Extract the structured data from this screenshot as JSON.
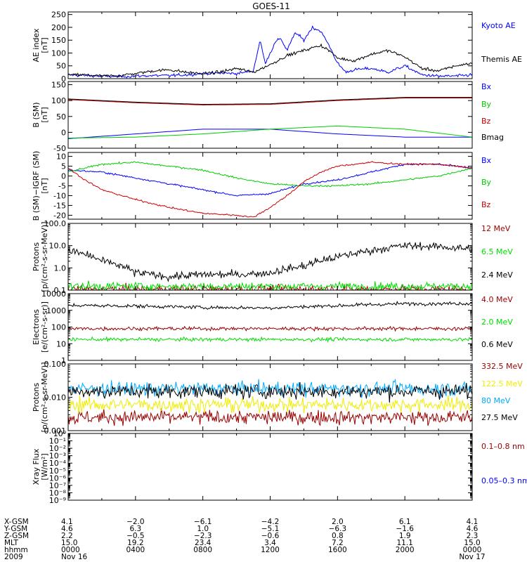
{
  "figure": {
    "title": "GOES-11"
  },
  "chart_data": [
    {
      "id": "ae",
      "type": "line",
      "ylabel": [
        "AE index",
        "[nT]"
      ],
      "yscale": "linear",
      "ylim": [
        0,
        260
      ],
      "yticks": [
        0,
        50,
        100,
        150,
        200,
        250
      ],
      "ytick_labels": [
        "0",
        "50",
        "100",
        "150",
        "200",
        "250"
      ],
      "noise": 4,
      "series": [
        {
          "name": "Kyoto AE",
          "color": "#0000ff",
          "x": [
            0,
            1,
            2,
            3,
            4,
            5,
            6,
            7,
            8,
            9,
            10,
            11,
            11.4,
            11.7,
            12,
            12.3,
            12.6,
            13,
            13.5,
            14,
            14.5,
            15,
            15.5,
            16,
            16.5,
            17,
            18,
            19,
            20,
            21,
            22,
            23,
            24
          ],
          "y": [
            15,
            12,
            10,
            8,
            10,
            12,
            12,
            15,
            20,
            22,
            20,
            30,
            150,
            60,
            100,
            140,
            160,
            110,
            180,
            150,
            200,
            185,
            130,
            60,
            25,
            35,
            40,
            25,
            50,
            15,
            10,
            10,
            15
          ]
        },
        {
          "name": "Themis AE",
          "color": "#000000",
          "x": [
            0,
            1,
            2,
            3,
            4,
            5,
            6,
            7,
            8,
            9,
            10,
            11,
            12,
            13,
            14,
            15,
            15.5,
            16,
            17,
            18,
            19,
            20,
            21,
            22,
            23,
            24
          ],
          "y": [
            15,
            15,
            10,
            12,
            20,
            30,
            35,
            25,
            20,
            25,
            40,
            25,
            55,
            90,
            110,
            130,
            110,
            80,
            70,
            95,
            110,
            85,
            40,
            30,
            50,
            60
          ]
        }
      ]
    },
    {
      "id": "bgsm",
      "type": "line",
      "ylabel": [
        "B (SM)",
        "[nT]"
      ],
      "yscale": "linear",
      "ylim": [
        -50,
        160
      ],
      "yticks": [
        -50,
        0,
        50,
        100,
        150
      ],
      "ytick_labels": [
        "-50",
        "0",
        "50",
        "100",
        "150"
      ],
      "noise": 0,
      "series": [
        {
          "name": "Bx",
          "color": "#0000ff",
          "x": [
            0,
            4,
            8,
            12,
            16,
            20,
            24
          ],
          "y": [
            -20,
            -5,
            10,
            10,
            -5,
            -15,
            -15
          ]
        },
        {
          "name": "By",
          "color": "#00cc00",
          "x": [
            0,
            4,
            8,
            12,
            16,
            20,
            24
          ],
          "y": [
            -18,
            -15,
            -5,
            10,
            20,
            10,
            -15
          ]
        },
        {
          "name": "Bz",
          "color": "#cc0000",
          "x": [
            0,
            4,
            8,
            12,
            16,
            20,
            24
          ],
          "y": [
            103,
            93,
            86,
            88,
            100,
            108,
            108
          ]
        },
        {
          "name": "Bmag",
          "color": "#000000",
          "x": [
            0,
            4,
            8,
            12,
            16,
            20,
            24
          ],
          "y": [
            105,
            95,
            88,
            90,
            102,
            110,
            110
          ]
        }
      ]
    },
    {
      "id": "bresid",
      "type": "line",
      "ylabel": [
        "B (SM)−IGRF (SM)",
        "[nT]"
      ],
      "yscale": "linear",
      "ylim": [
        -22,
        12
      ],
      "yticks": [
        -20,
        -15,
        -10,
        -5,
        0,
        5,
        10
      ],
      "ytick_labels": [
        "-20",
        "-15",
        "-10",
        "-5",
        "0",
        "5",
        "10"
      ],
      "noise": 0.3,
      "series": [
        {
          "name": "Bx",
          "color": "#0000ff",
          "x": [
            0,
            2,
            4,
            6,
            8,
            10,
            12,
            14,
            16,
            18,
            20,
            22,
            24
          ],
          "y": [
            3,
            2,
            -1,
            -4,
            -7,
            -10,
            -9,
            -4,
            -2,
            2,
            6,
            6,
            4
          ]
        },
        {
          "name": "By",
          "color": "#00cc00",
          "x": [
            0,
            2,
            4,
            6,
            8,
            10,
            12,
            14,
            16,
            18,
            20,
            22,
            24
          ],
          "y": [
            2,
            6,
            7,
            5,
            3,
            -1,
            -4,
            -5,
            -5,
            -4,
            -2,
            0,
            4
          ]
        },
        {
          "name": "Bz",
          "color": "#cc0000",
          "x": [
            0,
            1,
            2,
            4,
            6,
            8,
            10,
            11,
            12,
            13,
            14,
            15,
            16,
            18,
            20,
            22,
            24
          ],
          "y": [
            4,
            -2,
            -7,
            -12,
            -16,
            -19,
            -20,
            -21,
            -16,
            -10,
            -3,
            2,
            5,
            7,
            6,
            6,
            4
          ]
        }
      ]
    },
    {
      "id": "hiprot",
      "type": "line",
      "ylabel": [
        "Protons",
        "[p/(cm²-s-sr-MeV)]"
      ],
      "yscale": "log",
      "ylim": [
        0.1,
        100
      ],
      "yticks": [
        0.1,
        1,
        10,
        100
      ],
      "ytick_labels": [
        "0.1",
        "1.0",
        "10.0",
        "100.0"
      ],
      "noise": 0.25,
      "series": [
        {
          "name": "12 MeV",
          "color": "#990000",
          "x": [
            0,
            24
          ],
          "y": [
            0.11,
            0.11
          ]
        },
        {
          "name": "6.5 MeV",
          "color": "#00dd00",
          "x": [
            0,
            24
          ],
          "y": [
            0.15,
            0.15
          ]
        },
        {
          "name": "2.4 MeV",
          "color": "#000000",
          "x": [
            0,
            2,
            4,
            6,
            8,
            10,
            12,
            14,
            16,
            18,
            20,
            22,
            24
          ],
          "y": [
            6,
            2,
            0.6,
            0.4,
            0.5,
            0.5,
            0.6,
            1.2,
            3,
            6,
            10,
            9,
            7
          ]
        }
      ]
    },
    {
      "id": "electrons",
      "type": "line",
      "ylabel": [
        "Electrons",
        "[e/(cm²-s-sr)]"
      ],
      "yscale": "log",
      "ylim": [
        1,
        10000
      ],
      "yticks": [
        1,
        10,
        100,
        1000,
        10000
      ],
      "ytick_labels": [
        "1",
        "10",
        "100",
        "1000",
        "10000"
      ],
      "noise": 0.15,
      "series": [
        {
          "name": "4.0 MeV",
          "color": "#990000",
          "x": [
            0,
            24
          ],
          "y": [
            80,
            80
          ]
        },
        {
          "name": "2.0 MeV",
          "color": "#00dd00",
          "x": [
            0,
            24
          ],
          "y": [
            18,
            18
          ]
        },
        {
          "name": "0.6 MeV",
          "color": "#000000",
          "x": [
            0,
            4,
            8,
            12,
            16,
            20,
            24
          ],
          "y": [
            2000,
            1800,
            1500,
            1400,
            1900,
            2500,
            2600
          ]
        }
      ]
    },
    {
      "id": "loprot",
      "type": "line",
      "ylabel": [
        "Protons",
        "[p/(cm²-s-sr-MeV)]"
      ],
      "yscale": "log",
      "ylim": [
        0.001,
        0.1
      ],
      "yticks": [
        0.001,
        0.01,
        0.1
      ],
      "ytick_labels": [
        "0.001",
        "0.010",
        "0.100"
      ],
      "noise": 0.3,
      "series": [
        {
          "name": "332.5 MeV",
          "color": "#990000",
          "x": [
            0,
            24
          ],
          "y": [
            0.0025,
            0.0025
          ]
        },
        {
          "name": "122.5 MeV",
          "color": "#eeee00",
          "x": [
            0,
            24
          ],
          "y": [
            0.006,
            0.006
          ]
        },
        {
          "name": "80 MeV",
          "color": "#00aaff",
          "x": [
            0,
            24
          ],
          "y": [
            0.018,
            0.018
          ]
        },
        {
          "name": "27.5 MeV",
          "color": "#000000",
          "x": [
            0,
            24
          ],
          "y": [
            0.015,
            0.015
          ]
        }
      ]
    },
    {
      "id": "xray",
      "type": "line",
      "ylabel": [
        "Xray Flux",
        "[W/m²]"
      ],
      "yscale": "log",
      "ylim": [
        1e-09,
        1
      ],
      "yticks": [
        1e-09,
        1e-08,
        1e-07,
        1e-06,
        1e-05,
        0.0001,
        0.001,
        0.01,
        0.1,
        1
      ],
      "ytick_labels": [
        "10⁻⁹",
        "10⁻⁸",
        "10⁻⁷",
        "10⁻⁶",
        "10⁻⁵",
        "10⁻⁴",
        "10⁻³",
        "10⁻²",
        "10⁻¹",
        "10⁰"
      ],
      "noise": 0,
      "series": [
        {
          "name": "0.1–0.8 nm",
          "color": "#990000",
          "x": [],
          "y": []
        },
        {
          "name": "0.05–0.3 nm",
          "color": "#0000ff",
          "x": [],
          "y": []
        }
      ]
    }
  ],
  "x_axis": {
    "row_labels": [
      "X-GSM",
      "Y-GSM",
      "Z-GSM",
      "MLT",
      "hhmm",
      "2009"
    ],
    "columns": [
      {
        "x": 0,
        "values": [
          "4.1",
          "4.6",
          "2.2",
          "15.0",
          "0000",
          "Nov 16"
        ]
      },
      {
        "x": 4,
        "values": [
          "−2.0",
          "6.3",
          "−0.5",
          "19.2",
          "0400",
          ""
        ]
      },
      {
        "x": 8,
        "values": [
          "−6.1",
          "1.0",
          "−2.3",
          "23.4",
          "0800",
          ""
        ]
      },
      {
        "x": 12,
        "values": [
          "−4.2",
          "−5.1",
          "−0.6",
          "3.4",
          "1200",
          ""
        ]
      },
      {
        "x": 16,
        "values": [
          "2.0",
          "−6.3",
          "0.8",
          "7.2",
          "1600",
          ""
        ]
      },
      {
        "x": 20,
        "values": [
          "6.1",
          "−1.6",
          "1.9",
          "11.1",
          "2000",
          ""
        ]
      },
      {
        "x": 24,
        "values": [
          "4.1",
          "4.6",
          "2.3",
          "15.0",
          "0000",
          "Nov 17"
        ]
      }
    ]
  }
}
